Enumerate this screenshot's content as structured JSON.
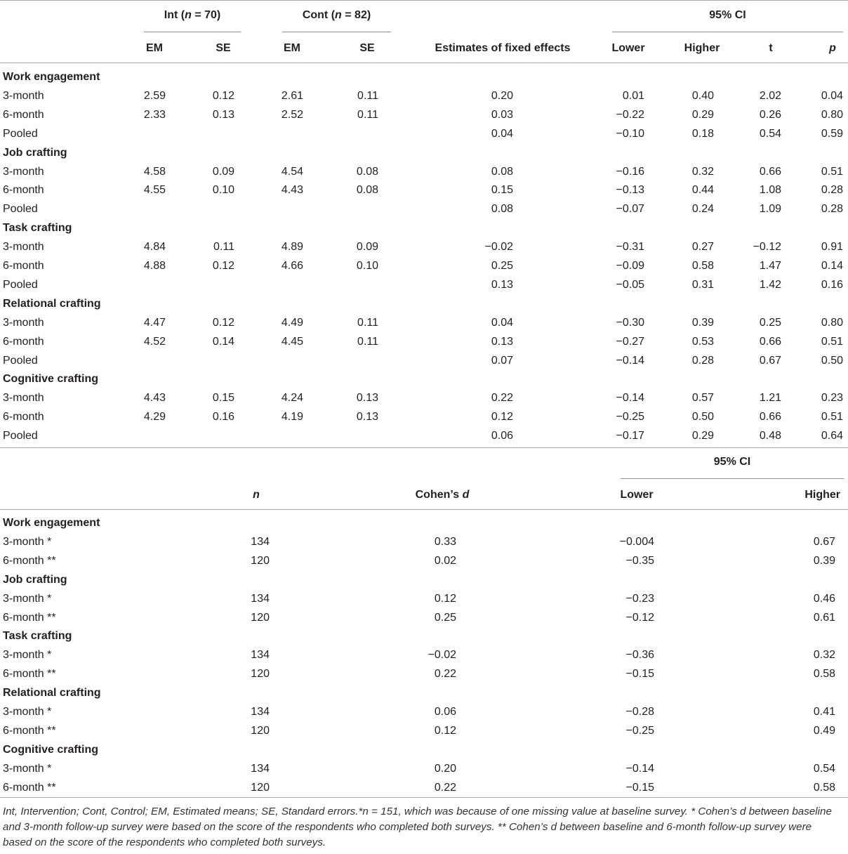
{
  "table1": {
    "headers": {
      "int_label": "Int",
      "int_n": "n",
      "int_val": " = 70)",
      "cont_label": "Cont",
      "cont_n": "n",
      "cont_val": " = 82)",
      "ci": "95% CI",
      "em": "EM",
      "se": "SE",
      "em2": "EM",
      "se2": "SE",
      "fixed": "Estimates of fixed effects",
      "lower": "Lower",
      "higher": "Higher",
      "t": "t",
      "p": "p"
    },
    "groups": [
      {
        "name": "Work engagement",
        "rows": [
          [
            "3-month",
            "2.59",
            "0.12",
            "2.61",
            "0.11",
            "0.20",
            "0.01",
            "0.40",
            "2.02",
            "0.04"
          ],
          [
            "6-month",
            "2.33",
            "0.13",
            "2.52",
            "0.11",
            "0.03",
            "−0.22",
            "0.29",
            "0.26",
            "0.80"
          ],
          [
            "Pooled",
            "",
            "",
            "",
            "",
            "0.04",
            "−0.10",
            "0.18",
            "0.54",
            "0.59"
          ]
        ]
      },
      {
        "name": "Job crafting",
        "rows": [
          [
            "3-month",
            "4.58",
            "0.09",
            "4.54",
            "0.08",
            "0.08",
            "−0.16",
            "0.32",
            "0.66",
            "0.51"
          ],
          [
            "6-month",
            "4.55",
            "0.10",
            "4.43",
            "0.08",
            "0.15",
            "−0.13",
            "0.44",
            "1.08",
            "0.28"
          ],
          [
            "Pooled",
            "",
            "",
            "",
            "",
            "0.08",
            "−0.07",
            "0.24",
            "1.09",
            "0.28"
          ]
        ]
      },
      {
        "name": "Task crafting",
        "rows": [
          [
            "3-month",
            "4.84",
            "0.11",
            "4.89",
            "0.09",
            "−0.02",
            "−0.31",
            "0.27",
            "−0.12",
            "0.91"
          ],
          [
            "6-month",
            "4.88",
            "0.12",
            "4.66",
            "0.10",
            "0.25",
            "−0.09",
            "0.58",
            "1.47",
            "0.14"
          ],
          [
            "Pooled",
            "",
            "",
            "",
            "",
            "0.13",
            "−0.05",
            "0.31",
            "1.42",
            "0.16"
          ]
        ]
      },
      {
        "name": "Relational crafting",
        "rows": [
          [
            "3-month",
            "4.47",
            "0.12",
            "4.49",
            "0.11",
            "0.04",
            "−0.30",
            "0.39",
            "0.25",
            "0.80"
          ],
          [
            "6-month",
            "4.52",
            "0.14",
            "4.45",
            "0.11",
            "0.13",
            "−0.27",
            "0.53",
            "0.66",
            "0.51"
          ],
          [
            "Pooled",
            "",
            "",
            "",
            "",
            "0.07",
            "−0.14",
            "0.28",
            "0.67",
            "0.50"
          ]
        ]
      },
      {
        "name": "Cognitive crafting",
        "rows": [
          [
            "3-month",
            "4.43",
            "0.15",
            "4.24",
            "0.13",
            "0.22",
            "−0.14",
            "0.57",
            "1.21",
            "0.23"
          ],
          [
            "6-month",
            "4.29",
            "0.16",
            "4.19",
            "0.13",
            "0.12",
            "−0.25",
            "0.50",
            "0.66",
            "0.51"
          ],
          [
            "Pooled",
            "",
            "",
            "",
            "",
            "0.06",
            "−0.17",
            "0.29",
            "0.48",
            "0.64"
          ]
        ]
      }
    ]
  },
  "table2": {
    "headers": {
      "ci": "95% CI",
      "n": "n",
      "cohens": "Cohen’s ",
      "cohens_d": "d",
      "lower": "Lower",
      "higher": "Higher"
    },
    "groups": [
      {
        "name": "Work engagement",
        "rows": [
          [
            "3-month *",
            "134",
            "0.33",
            "−0.004",
            "0.67"
          ],
          [
            "6-month **",
            "120",
            "0.02",
            "−0.35",
            "0.39"
          ]
        ]
      },
      {
        "name": "Job crafting",
        "rows": [
          [
            "3-month *",
            "134",
            "0.12",
            "−0.23",
            "0.46"
          ],
          [
            "6-month **",
            "120",
            "0.25",
            "−0.12",
            "0.61"
          ]
        ]
      },
      {
        "name": "Task crafting",
        "rows": [
          [
            "3-month *",
            "134",
            "−0.02",
            "−0.36",
            "0.32"
          ],
          [
            "6-month **",
            "120",
            "0.22",
            "−0.15",
            "0.58"
          ]
        ]
      },
      {
        "name": "Relational crafting",
        "rows": [
          [
            "3-month *",
            "134",
            "0.06",
            "−0.28",
            "0.41"
          ],
          [
            "6-month **",
            "120",
            "0.12",
            "−0.25",
            "0.49"
          ]
        ]
      },
      {
        "name": "Cognitive crafting",
        "rows": [
          [
            "3-month *",
            "134",
            "0.20",
            "−0.14",
            "0.54"
          ],
          [
            "6-month **",
            "120",
            "0.22",
            "−0.15",
            "0.58"
          ]
        ]
      }
    ]
  },
  "footnote": "Int, Intervention; Cont, Control; EM, Estimated means; SE, Standard errors.*n = 151, which was because of one missing value at baseline survey. * Cohen’s d between baseline and 3-month follow-up survey were based on the score of the respondents who completed both surveys. ** Cohen’s d between baseline and 6-month follow-up survey were based on the score of the respondents who completed both surveys."
}
